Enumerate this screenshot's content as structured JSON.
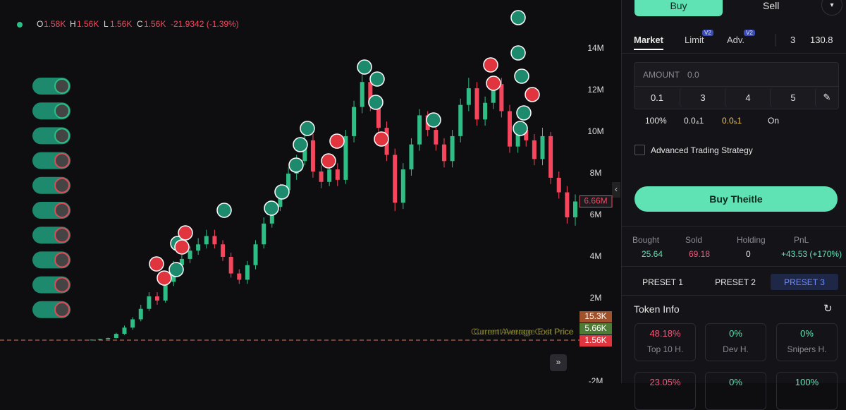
{
  "header": {
    "o_label": "O",
    "o": "1.58K",
    "h_label": "H",
    "h": "1.56K",
    "l_label": "L",
    "l": "1.56K",
    "c_label": "C",
    "c": "1.56K",
    "change": "-21.9342 (-1.39%)"
  },
  "chart_data": {
    "type": "candlestick",
    "open": [
      0.02,
      0.02,
      0.05,
      0.1,
      0.3,
      0.6,
      1.0,
      1.5,
      2.1,
      1.9,
      2.8,
      3.6,
      3.9,
      4.3,
      4.6,
      5.0,
      4.6,
      4.0,
      3.2,
      2.9,
      3.6,
      4.6,
      5.6,
      6.4,
      7.2,
      8.0,
      8.6,
      9.6,
      8.1,
      7.6,
      8.2,
      7.7,
      9.8,
      11.2,
      12.4,
      11.3,
      10.2,
      8.9,
      6.6,
      8.2,
      9.4,
      10.8,
      10.1,
      9.4,
      8.6,
      9.8,
      11.3,
      12.1,
      10.6,
      11.4,
      12.3,
      11.0,
      9.3,
      10.1,
      9.6,
      8.7,
      9.8,
      7.8,
      7.1,
      5.9
    ],
    "high": [
      0.03,
      0.06,
      0.12,
      0.35,
      0.7,
      1.1,
      1.7,
      2.3,
      2.3,
      3.0,
      3.8,
      4.1,
      4.5,
      4.9,
      5.3,
      5.3,
      4.8,
      4.2,
      3.4,
      3.8,
      4.8,
      5.9,
      6.7,
      7.5,
      8.3,
      8.9,
      10.0,
      9.9,
      8.4,
      8.5,
      8.5,
      10.1,
      11.5,
      12.8,
      12.7,
      11.6,
      10.5,
      9.2,
      8.5,
      9.7,
      11.1,
      11.0,
      10.4,
      9.7,
      10.1,
      11.6,
      12.6,
      12.4,
      11.7,
      12.7,
      12.6,
      11.3,
      10.4,
      10.3,
      9.9,
      10.2,
      10.0,
      8.1,
      7.4,
      7.0
    ],
    "low": [
      0.01,
      0.01,
      0.04,
      0.08,
      0.25,
      0.5,
      0.9,
      1.4,
      1.7,
      1.8,
      2.6,
      3.4,
      3.7,
      4.1,
      4.4,
      4.4,
      3.8,
      3.0,
      2.7,
      2.7,
      3.4,
      4.4,
      5.4,
      6.2,
      7.0,
      7.7,
      8.4,
      7.8,
      7.3,
      7.4,
      7.4,
      7.5,
      9.5,
      10.9,
      11.0,
      10.0,
      8.6,
      6.2,
      6.3,
      7.9,
      9.1,
      9.8,
      9.1,
      8.3,
      8.3,
      9.5,
      11.0,
      10.3,
      10.3,
      11.1,
      10.7,
      9.0,
      9.0,
      9.3,
      8.4,
      8.4,
      7.5,
      6.8,
      5.6,
      5.5
    ],
    "close": [
      0.02,
      0.05,
      0.1,
      0.3,
      0.6,
      1.0,
      1.5,
      2.1,
      1.9,
      2.8,
      3.6,
      3.9,
      4.3,
      4.6,
      5.0,
      4.6,
      4.0,
      3.2,
      2.9,
      3.6,
      4.6,
      5.6,
      6.4,
      7.2,
      8.0,
      8.6,
      9.6,
      8.1,
      7.6,
      8.2,
      7.7,
      9.8,
      11.2,
      12.4,
      11.3,
      10.2,
      8.9,
      6.6,
      8.2,
      9.4,
      10.8,
      10.1,
      9.4,
      8.6,
      9.8,
      11.3,
      12.1,
      10.6,
      11.4,
      12.3,
      11.0,
      9.3,
      10.1,
      9.6,
      8.7,
      9.8,
      7.8,
      7.1,
      5.9,
      6.66
    ],
    "ylim": [
      -2.07,
      16.34
    ],
    "yticks": [
      {
        "value": -2,
        "label": "-2M"
      },
      {
        "value": 2,
        "label": "2M"
      },
      {
        "value": 4,
        "label": "4M"
      },
      {
        "value": 6,
        "label": "6M"
      },
      {
        "value": 8,
        "label": "8M"
      },
      {
        "value": 10,
        "label": "10M"
      },
      {
        "value": 12,
        "label": "12M"
      },
      {
        "value": 14,
        "label": "14M"
      }
    ],
    "up_color": "#2ebd85",
    "down_color": "#f6465d",
    "last_price": {
      "value": 6.66,
      "label": "6.66M"
    },
    "price_tags": [
      "15.3K",
      "5.66K",
      "1.56K"
    ],
    "annotations": [
      "Current Average Cost Price",
      "Current Average Exit Price"
    ]
  },
  "panel": {
    "buy": "Buy",
    "sell": "Sell",
    "tabs": [
      "Market",
      "Limit",
      "Adv."
    ],
    "badge": "V2",
    "wallets": "3",
    "balance": "130.8",
    "amount_label": "AMOUNT",
    "amount_placeholder": "0.0",
    "quick": [
      "0.1",
      "3",
      "4",
      "5"
    ],
    "slippage": "100%",
    "priority": "0.0₄1",
    "bribe": "0.0₅1",
    "mev": "On",
    "advanced": "Advanced Trading Strategy",
    "buy_button": "Buy Theitle",
    "stats": [
      {
        "label": "Bought",
        "value": "25.64"
      },
      {
        "label": "Sold",
        "value": "69.18"
      },
      {
        "label": "Holding",
        "value": "0"
      },
      {
        "label": "PnL",
        "value": "+43.53 (+170%)"
      }
    ],
    "presets": [
      "PRESET 1",
      "PRESET 2",
      "PRESET 3"
    ],
    "token_info": "Token Info",
    "cards": [
      {
        "value": "48.18%",
        "label": "Top 10 H."
      },
      {
        "value": "0%",
        "label": "Dev H."
      },
      {
        "value": "0%",
        "label": "Snipers H."
      }
    ],
    "cards2": [
      "23.05%",
      "0%",
      "100%"
    ]
  }
}
